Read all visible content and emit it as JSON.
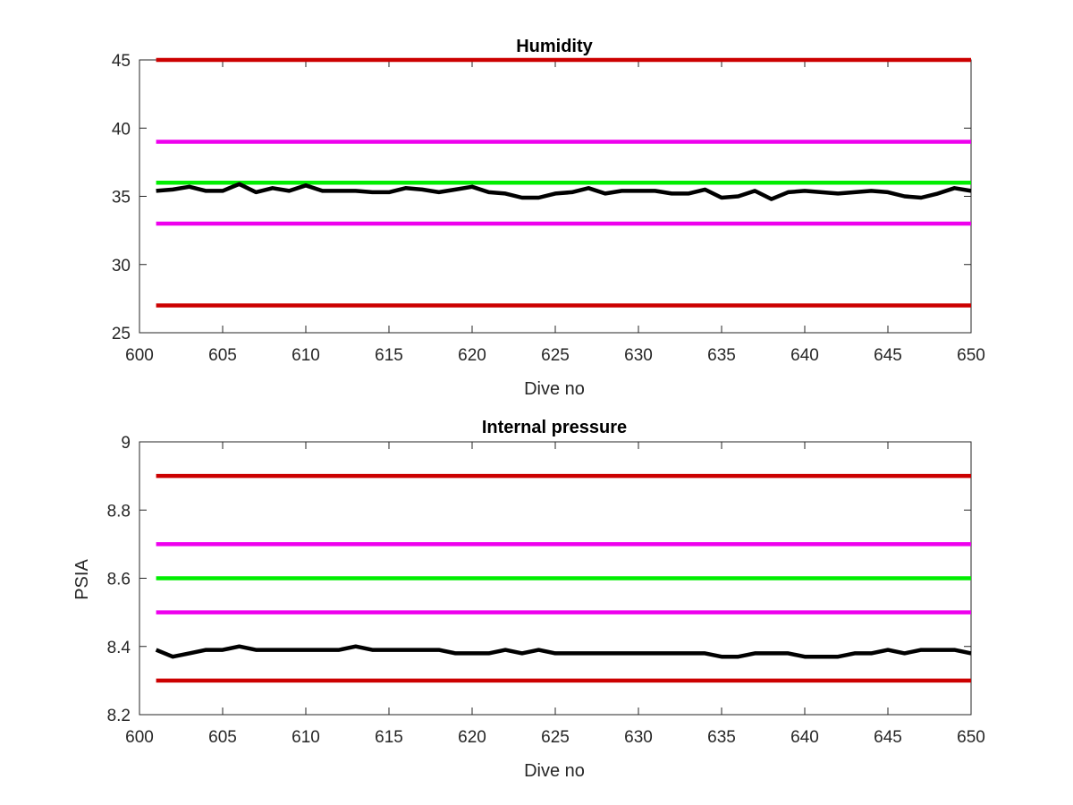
{
  "chart_data": [
    {
      "type": "line",
      "title": "Humidity",
      "xlabel": "Dive no",
      "ylabel": "",
      "xlim": [
        600,
        650
      ],
      "ylim": [
        25,
        45
      ],
      "xticks": [
        "600",
        "605",
        "610",
        "615",
        "620",
        "625",
        "630",
        "635",
        "640",
        "645",
        "650"
      ],
      "yticks": [
        "25",
        "30",
        "35",
        "40",
        "45"
      ],
      "grid": false,
      "x": [
        601,
        602,
        603,
        604,
        605,
        606,
        607,
        608,
        609,
        610,
        611,
        612,
        613,
        614,
        615,
        616,
        617,
        618,
        619,
        620,
        621,
        622,
        623,
        624,
        625,
        626,
        627,
        628,
        629,
        630,
        631,
        632,
        633,
        634,
        635,
        636,
        637,
        638,
        639,
        640,
        641,
        642,
        643,
        644,
        645,
        646,
        647,
        648,
        649,
        650
      ],
      "series": [
        {
          "color": "#cc0000",
          "values": [
            45,
            45,
            45,
            45,
            45,
            45,
            45,
            45,
            45,
            45,
            45,
            45,
            45,
            45,
            45,
            45,
            45,
            45,
            45,
            45,
            45,
            45,
            45,
            45,
            45,
            45,
            45,
            45,
            45,
            45,
            45,
            45,
            45,
            45,
            45,
            45,
            45,
            45,
            45,
            45,
            45,
            45,
            45,
            45,
            45,
            45,
            45,
            45,
            45,
            45
          ]
        },
        {
          "color": "#ee00ee",
          "values": [
            39,
            39,
            39,
            39,
            39,
            39,
            39,
            39,
            39,
            39,
            39,
            39,
            39,
            39,
            39,
            39,
            39,
            39,
            39,
            39,
            39,
            39,
            39,
            39,
            39,
            39,
            39,
            39,
            39,
            39,
            39,
            39,
            39,
            39,
            39,
            39,
            39,
            39,
            39,
            39,
            39,
            39,
            39,
            39,
            39,
            39,
            39,
            39,
            39,
            39
          ]
        },
        {
          "color": "#00ee00",
          "values": [
            36,
            36,
            36,
            36,
            36,
            36,
            36,
            36,
            36,
            36,
            36,
            36,
            36,
            36,
            36,
            36,
            36,
            36,
            36,
            36,
            36,
            36,
            36,
            36,
            36,
            36,
            36,
            36,
            36,
            36,
            36,
            36,
            36,
            36,
            36,
            36,
            36,
            36,
            36,
            36,
            36,
            36,
            36,
            36,
            36,
            36,
            36,
            36,
            36,
            36
          ]
        },
        {
          "color": "#000000",
          "values": [
            35.4,
            35.5,
            35.7,
            35.4,
            35.4,
            35.9,
            35.3,
            35.6,
            35.4,
            35.8,
            35.4,
            35.4,
            35.4,
            35.3,
            35.3,
            35.6,
            35.5,
            35.3,
            35.5,
            35.7,
            35.3,
            35.2,
            34.9,
            34.9,
            35.2,
            35.3,
            35.6,
            35.2,
            35.4,
            35.4,
            35.4,
            35.2,
            35.2,
            35.5,
            34.9,
            35.0,
            35.4,
            34.8,
            35.3,
            35.4,
            35.3,
            35.2,
            35.3,
            35.4,
            35.3,
            35.0,
            34.9,
            35.2,
            35.6,
            35.4
          ]
        },
        {
          "color": "#ee00ee",
          "values": [
            33,
            33,
            33,
            33,
            33,
            33,
            33,
            33,
            33,
            33,
            33,
            33,
            33,
            33,
            33,
            33,
            33,
            33,
            33,
            33,
            33,
            33,
            33,
            33,
            33,
            33,
            33,
            33,
            33,
            33,
            33,
            33,
            33,
            33,
            33,
            33,
            33,
            33,
            33,
            33,
            33,
            33,
            33,
            33,
            33,
            33,
            33,
            33,
            33,
            33
          ]
        },
        {
          "color": "#cc0000",
          "values": [
            27,
            27,
            27,
            27,
            27,
            27,
            27,
            27,
            27,
            27,
            27,
            27,
            27,
            27,
            27,
            27,
            27,
            27,
            27,
            27,
            27,
            27,
            27,
            27,
            27,
            27,
            27,
            27,
            27,
            27,
            27,
            27,
            27,
            27,
            27,
            27,
            27,
            27,
            27,
            27,
            27,
            27,
            27,
            27,
            27,
            27,
            27,
            27,
            27,
            27
          ]
        }
      ]
    },
    {
      "type": "line",
      "title": "Internal pressure",
      "xlabel": "Dive no",
      "ylabel": "PSIA",
      "xlim": [
        600,
        650
      ],
      "ylim": [
        8.2,
        9
      ],
      "xticks": [
        "600",
        "605",
        "610",
        "615",
        "620",
        "625",
        "630",
        "635",
        "640",
        "645",
        "650"
      ],
      "yticks": [
        "8.2",
        "8.4",
        "8.6",
        "8.8",
        "9"
      ],
      "grid": false,
      "x": [
        601,
        602,
        603,
        604,
        605,
        606,
        607,
        608,
        609,
        610,
        611,
        612,
        613,
        614,
        615,
        616,
        617,
        618,
        619,
        620,
        621,
        622,
        623,
        624,
        625,
        626,
        627,
        628,
        629,
        630,
        631,
        632,
        633,
        634,
        635,
        636,
        637,
        638,
        639,
        640,
        641,
        642,
        643,
        644,
        645,
        646,
        647,
        648,
        649,
        650
      ],
      "series": [
        {
          "color": "#cc0000",
          "values": [
            8.9,
            8.9,
            8.9,
            8.9,
            8.9,
            8.9,
            8.9,
            8.9,
            8.9,
            8.9,
            8.9,
            8.9,
            8.9,
            8.9,
            8.9,
            8.9,
            8.9,
            8.9,
            8.9,
            8.9,
            8.9,
            8.9,
            8.9,
            8.9,
            8.9,
            8.9,
            8.9,
            8.9,
            8.9,
            8.9,
            8.9,
            8.9,
            8.9,
            8.9,
            8.9,
            8.9,
            8.9,
            8.9,
            8.9,
            8.9,
            8.9,
            8.9,
            8.9,
            8.9,
            8.9,
            8.9,
            8.9,
            8.9,
            8.9,
            8.9
          ]
        },
        {
          "color": "#ee00ee",
          "values": [
            8.7,
            8.7,
            8.7,
            8.7,
            8.7,
            8.7,
            8.7,
            8.7,
            8.7,
            8.7,
            8.7,
            8.7,
            8.7,
            8.7,
            8.7,
            8.7,
            8.7,
            8.7,
            8.7,
            8.7,
            8.7,
            8.7,
            8.7,
            8.7,
            8.7,
            8.7,
            8.7,
            8.7,
            8.7,
            8.7,
            8.7,
            8.7,
            8.7,
            8.7,
            8.7,
            8.7,
            8.7,
            8.7,
            8.7,
            8.7,
            8.7,
            8.7,
            8.7,
            8.7,
            8.7,
            8.7,
            8.7,
            8.7,
            8.7,
            8.7
          ]
        },
        {
          "color": "#00ee00",
          "values": [
            8.6,
            8.6,
            8.6,
            8.6,
            8.6,
            8.6,
            8.6,
            8.6,
            8.6,
            8.6,
            8.6,
            8.6,
            8.6,
            8.6,
            8.6,
            8.6,
            8.6,
            8.6,
            8.6,
            8.6,
            8.6,
            8.6,
            8.6,
            8.6,
            8.6,
            8.6,
            8.6,
            8.6,
            8.6,
            8.6,
            8.6,
            8.6,
            8.6,
            8.6,
            8.6,
            8.6,
            8.6,
            8.6,
            8.6,
            8.6,
            8.6,
            8.6,
            8.6,
            8.6,
            8.6,
            8.6,
            8.6,
            8.6,
            8.6,
            8.6
          ]
        },
        {
          "color": "#ee00ee",
          "values": [
            8.5,
            8.5,
            8.5,
            8.5,
            8.5,
            8.5,
            8.5,
            8.5,
            8.5,
            8.5,
            8.5,
            8.5,
            8.5,
            8.5,
            8.5,
            8.5,
            8.5,
            8.5,
            8.5,
            8.5,
            8.5,
            8.5,
            8.5,
            8.5,
            8.5,
            8.5,
            8.5,
            8.5,
            8.5,
            8.5,
            8.5,
            8.5,
            8.5,
            8.5,
            8.5,
            8.5,
            8.5,
            8.5,
            8.5,
            8.5,
            8.5,
            8.5,
            8.5,
            8.5,
            8.5,
            8.5,
            8.5,
            8.5,
            8.5,
            8.5
          ]
        },
        {
          "color": "#000000",
          "values": [
            8.39,
            8.37,
            8.38,
            8.39,
            8.39,
            8.4,
            8.39,
            8.39,
            8.39,
            8.39,
            8.39,
            8.39,
            8.4,
            8.39,
            8.39,
            8.39,
            8.39,
            8.39,
            8.38,
            8.38,
            8.38,
            8.39,
            8.38,
            8.39,
            8.38,
            8.38,
            8.38,
            8.38,
            8.38,
            8.38,
            8.38,
            8.38,
            8.38,
            8.38,
            8.37,
            8.37,
            8.38,
            8.38,
            8.38,
            8.37,
            8.37,
            8.37,
            8.38,
            8.38,
            8.39,
            8.38,
            8.39,
            8.39,
            8.39,
            8.38
          ]
        },
        {
          "color": "#cc0000",
          "values": [
            8.3,
            8.3,
            8.3,
            8.3,
            8.3,
            8.3,
            8.3,
            8.3,
            8.3,
            8.3,
            8.3,
            8.3,
            8.3,
            8.3,
            8.3,
            8.3,
            8.3,
            8.3,
            8.3,
            8.3,
            8.3,
            8.3,
            8.3,
            8.3,
            8.3,
            8.3,
            8.3,
            8.3,
            8.3,
            8.3,
            8.3,
            8.3,
            8.3,
            8.3,
            8.3,
            8.3,
            8.3,
            8.3,
            8.3,
            8.3,
            8.3,
            8.3,
            8.3,
            8.3,
            8.3,
            8.3,
            8.3,
            8.3,
            8.3,
            8.3
          ]
        }
      ]
    }
  ]
}
